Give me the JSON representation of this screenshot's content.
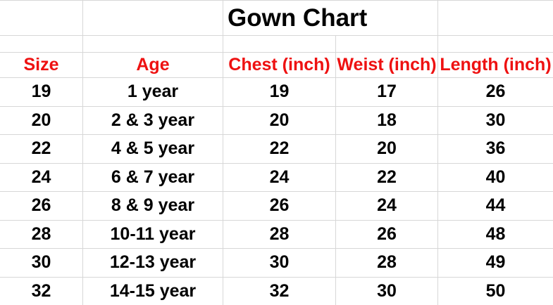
{
  "chart_data": {
    "type": "table",
    "title": "Gown Chart",
    "columns": [
      "Size",
      "Age",
      "Chest (inch)",
      "Weist (inch)",
      "Length (inch)"
    ],
    "rows": [
      [
        "19",
        "1 year",
        "19",
        "17",
        "26"
      ],
      [
        "20",
        "2 & 3 year",
        "20",
        "18",
        "30"
      ],
      [
        "22",
        "4 & 5 year",
        "22",
        "20",
        "36"
      ],
      [
        "24",
        "6 & 7 year",
        "24",
        "22",
        "40"
      ],
      [
        "26",
        "8 & 9 year",
        "26",
        "24",
        "44"
      ],
      [
        "28",
        "10-11 year",
        "28",
        "26",
        "48"
      ],
      [
        "30",
        "12-13 year",
        "30",
        "28",
        "49"
      ],
      [
        "32",
        "14-15 year",
        "32",
        "30",
        "50"
      ]
    ],
    "layout": {
      "grid_on": true,
      "header_text_color": "#ee1111",
      "body_text_color": "#000000",
      "gridline_color": "#d7d7d7",
      "background_color": "#ffffff",
      "title_align": "left-of-third-column"
    }
  }
}
